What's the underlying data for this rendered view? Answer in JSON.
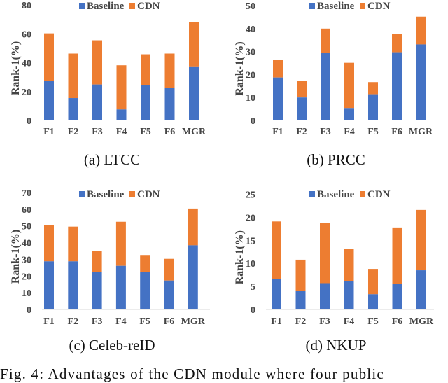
{
  "colors": {
    "baseline": "#4472c4",
    "cdn": "#ed7d31",
    "axis": "#d9d9d9"
  },
  "chart_data": [
    {
      "type": "bar",
      "stacked": true,
      "caption": "(a) LTCC",
      "categories": [
        "F1",
        "F2",
        "F3",
        "F4",
        "F5",
        "F6",
        "MGR"
      ],
      "series": [
        {
          "name": "Baseline",
          "values": [
            27.2,
            15.5,
            24.9,
            7.6,
            24.4,
            22.3,
            37.4
          ]
        },
        {
          "name": "CDN",
          "values": [
            60.3,
            46.3,
            55.5,
            38.2,
            45.8,
            46.3,
            68.1
          ]
        }
      ],
      "ylabel": "Rank-1(%)",
      "xlabel": "",
      "ylim": [
        0,
        80
      ],
      "yticks": [
        "0",
        "20",
        "40",
        "60",
        "80"
      ],
      "legend": "top-center",
      "grid": false
    },
    {
      "type": "bar",
      "stacked": true,
      "caption": "(b) PRCC",
      "categories": [
        "F1",
        "F2",
        "F3",
        "F4",
        "F5",
        "F6",
        "MGR"
      ],
      "series": [
        {
          "name": "Baseline",
          "values": [
            18.7,
            10.0,
            29.4,
            5.4,
            11.4,
            29.7,
            33.1
          ]
        },
        {
          "name": "CDN",
          "values": [
            26.4,
            17.2,
            40.0,
            25.1,
            16.7,
            37.8,
            45.2
          ]
        }
      ],
      "ylabel": "Rank-1(%)",
      "xlabel": "",
      "ylim": [
        0,
        50
      ],
      "yticks": [
        "0",
        "10",
        "20",
        "30",
        "40",
        "50"
      ],
      "legend": "top-center",
      "grid": false
    },
    {
      "type": "bar",
      "stacked": true,
      "caption": "(c) Celeb-reID",
      "categories": [
        "F1",
        "F2",
        "F3",
        "F4",
        "F5",
        "F6",
        "MGR"
      ],
      "series": [
        {
          "name": "Baseline",
          "values": [
            28.8,
            28.8,
            22.4,
            26.1,
            22.6,
            17.3,
            38.4
          ]
        },
        {
          "name": "CDN",
          "values": [
            50.3,
            49.6,
            34.9,
            52.5,
            32.6,
            30.3,
            60.4
          ]
        }
      ],
      "ylabel": "Rank-1(%)",
      "xlabel": "",
      "ylim": [
        0,
        70
      ],
      "yticks": [
        "0",
        "10",
        "20",
        "30",
        "40",
        "50",
        "60",
        "70"
      ],
      "legend": "top-center",
      "grid": false
    },
    {
      "type": "bar",
      "stacked": true,
      "caption": "(d) NKUP",
      "categories": [
        "F1",
        "F2",
        "F3",
        "F4",
        "F5",
        "F6",
        "MGR"
      ],
      "series": [
        {
          "name": "Baseline",
          "values": [
            6.6,
            4.1,
            5.7,
            6.1,
            3.3,
            5.5,
            8.5
          ]
        },
        {
          "name": "CDN",
          "values": [
            19.1,
            10.8,
            18.7,
            13.1,
            8.8,
            17.8,
            21.6
          ]
        }
      ],
      "ylabel": "Rank-1(%)",
      "xlabel": "",
      "ylim": [
        0,
        25
      ],
      "yticks": [
        "0",
        "5",
        "10",
        "15",
        "20",
        "25"
      ],
      "legend": "top-center",
      "grid": false
    }
  ],
  "figure_caption": "Fig. 4: Advantages of the CDN module where four public"
}
